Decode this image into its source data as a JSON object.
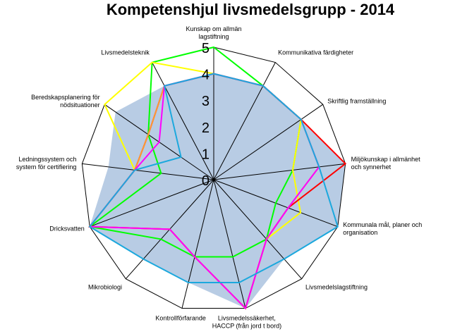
{
  "chart_data": {
    "type": "radar",
    "title": "Kompetenshjul livsmedelsgrupp - 2014",
    "categories": [
      [
        "Kunskap om allmän",
        "lagstiftning"
      ],
      [
        "Kommunikativa färdigheter"
      ],
      [
        "Skriftlig framställning"
      ],
      [
        "Miljökunskap i allmänhet",
        "och synnerhet"
      ],
      [
        "Kommunala mål, planer och",
        "organisation"
      ],
      [
        "Livsmedelslagstiftning"
      ],
      [
        "Livsmedelssäkerhet,",
        "HACCP (från jord t bord)"
      ],
      [
        "Kontrollförfarande"
      ],
      [
        "Mikrobiologi"
      ],
      [
        "Dricksvatten"
      ],
      [
        "Ledningssystem och",
        "system för certifiering"
      ],
      [
        "Beredskapsplanering för",
        "nödsituationer"
      ],
      [
        "Livsmedelsteknik"
      ]
    ],
    "rlim": [
      0,
      5
    ],
    "ticks": [
      "0",
      "1",
      "2",
      "3",
      "4",
      "5"
    ],
    "area": {
      "color": "#b8cce4",
      "values": [
        4,
        4,
        4,
        5,
        5,
        4,
        5,
        4,
        4,
        5,
        4,
        4.5,
        4
      ]
    },
    "series": [
      {
        "color": "#00ff00",
        "values": [
          5,
          4,
          4,
          3,
          2.5,
          3,
          3,
          3,
          3,
          5,
          2,
          3,
          5
        ]
      },
      {
        "color": "#ffff00",
        "values": [
          4,
          4,
          4,
          3,
          3.5,
          3,
          5,
          3,
          2.5,
          5,
          3,
          5,
          5
        ]
      },
      {
        "color": "#ff0000",
        "values": [
          4,
          4,
          4,
          5,
          3,
          3,
          5,
          3,
          2.5,
          5,
          3,
          3,
          4
        ]
      },
      {
        "color": "#ff9933",
        "values": [
          4,
          4,
          4,
          4,
          3,
          3,
          5,
          3,
          2.5,
          5,
          3,
          3,
          4
        ]
      },
      {
        "color": "#ff00ff",
        "values": [
          4,
          4,
          4,
          4,
          3,
          3,
          5,
          3,
          2.5,
          5,
          3,
          2.5,
          4
        ]
      },
      {
        "color": "#1ca8dd",
        "values": [
          4,
          4,
          4,
          4,
          5,
          4,
          4,
          4,
          4,
          5,
          3,
          1.5,
          4
        ]
      }
    ],
    "grid": true,
    "legend": "none"
  }
}
